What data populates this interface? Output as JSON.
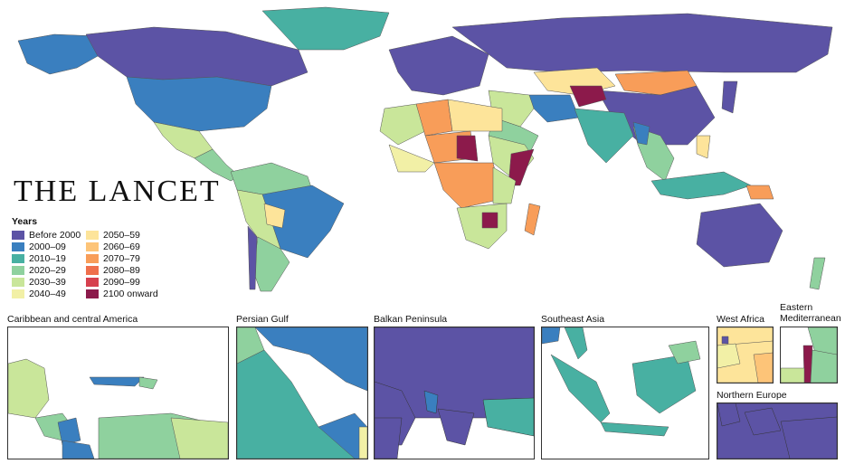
{
  "brand": "THE LANCET",
  "legend": {
    "title": "Years",
    "items": [
      {
        "label": "Before 2000",
        "color": "#5c53a5"
      },
      {
        "label": "2000–09",
        "color": "#3a7fbf"
      },
      {
        "label": "2010–19",
        "color": "#48b0a2"
      },
      {
        "label": "2020–29",
        "color": "#8fd19e"
      },
      {
        "label": "2030–39",
        "color": "#c9e69a"
      },
      {
        "label": "2040–49",
        "color": "#f2f0a6"
      },
      {
        "label": "2050–59",
        "color": "#fde49a"
      },
      {
        "label": "2060–69",
        "color": "#fdc478"
      },
      {
        "label": "2070–79",
        "color": "#f89d59"
      },
      {
        "label": "2080–89",
        "color": "#ef6f4c"
      },
      {
        "label": "2090–99",
        "color": "#d6404e"
      },
      {
        "label": "2100 onward",
        "color": "#8c1a4b"
      }
    ]
  },
  "insets": [
    {
      "label": "Caribbean and central America"
    },
    {
      "label": "Persian Gulf"
    },
    {
      "label": "Balkan Peninsula"
    },
    {
      "label": "Southeast Asia"
    },
    {
      "label": "West Africa"
    },
    {
      "label": "Eastern\nMediterranean"
    },
    {
      "label": "Northern Europe"
    }
  ]
}
